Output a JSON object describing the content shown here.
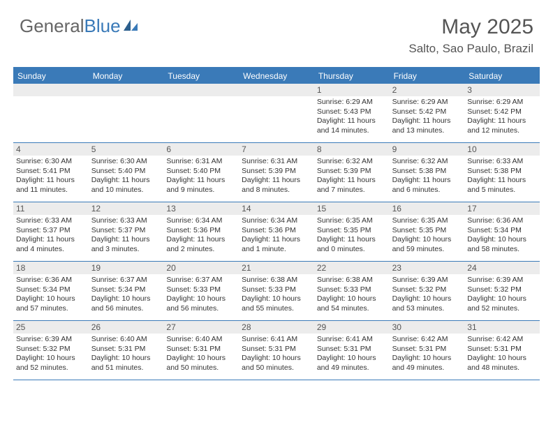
{
  "logo": {
    "part1": "General",
    "part2": "Blue"
  },
  "month_title": "May 2025",
  "location": "Salto, Sao Paulo, Brazil",
  "colors": {
    "header_bg": "#3a7ab8",
    "daynum_bg": "#ececec",
    "text": "#555555",
    "body_text": "#333333"
  },
  "day_headers": [
    "Sunday",
    "Monday",
    "Tuesday",
    "Wednesday",
    "Thursday",
    "Friday",
    "Saturday"
  ],
  "weeks": [
    [
      {
        "blank": true
      },
      {
        "blank": true
      },
      {
        "blank": true
      },
      {
        "blank": true
      },
      {
        "day": "1",
        "sunrise": "Sunrise: 6:29 AM",
        "sunset": "Sunset: 5:43 PM",
        "daylight1": "Daylight: 11 hours",
        "daylight2": "and 14 minutes."
      },
      {
        "day": "2",
        "sunrise": "Sunrise: 6:29 AM",
        "sunset": "Sunset: 5:42 PM",
        "daylight1": "Daylight: 11 hours",
        "daylight2": "and 13 minutes."
      },
      {
        "day": "3",
        "sunrise": "Sunrise: 6:29 AM",
        "sunset": "Sunset: 5:42 PM",
        "daylight1": "Daylight: 11 hours",
        "daylight2": "and 12 minutes."
      }
    ],
    [
      {
        "day": "4",
        "sunrise": "Sunrise: 6:30 AM",
        "sunset": "Sunset: 5:41 PM",
        "daylight1": "Daylight: 11 hours",
        "daylight2": "and 11 minutes."
      },
      {
        "day": "5",
        "sunrise": "Sunrise: 6:30 AM",
        "sunset": "Sunset: 5:40 PM",
        "daylight1": "Daylight: 11 hours",
        "daylight2": "and 10 minutes."
      },
      {
        "day": "6",
        "sunrise": "Sunrise: 6:31 AM",
        "sunset": "Sunset: 5:40 PM",
        "daylight1": "Daylight: 11 hours",
        "daylight2": "and 9 minutes."
      },
      {
        "day": "7",
        "sunrise": "Sunrise: 6:31 AM",
        "sunset": "Sunset: 5:39 PM",
        "daylight1": "Daylight: 11 hours",
        "daylight2": "and 8 minutes."
      },
      {
        "day": "8",
        "sunrise": "Sunrise: 6:32 AM",
        "sunset": "Sunset: 5:39 PM",
        "daylight1": "Daylight: 11 hours",
        "daylight2": "and 7 minutes."
      },
      {
        "day": "9",
        "sunrise": "Sunrise: 6:32 AM",
        "sunset": "Sunset: 5:38 PM",
        "daylight1": "Daylight: 11 hours",
        "daylight2": "and 6 minutes."
      },
      {
        "day": "10",
        "sunrise": "Sunrise: 6:33 AM",
        "sunset": "Sunset: 5:38 PM",
        "daylight1": "Daylight: 11 hours",
        "daylight2": "and 5 minutes."
      }
    ],
    [
      {
        "day": "11",
        "sunrise": "Sunrise: 6:33 AM",
        "sunset": "Sunset: 5:37 PM",
        "daylight1": "Daylight: 11 hours",
        "daylight2": "and 4 minutes."
      },
      {
        "day": "12",
        "sunrise": "Sunrise: 6:33 AM",
        "sunset": "Sunset: 5:37 PM",
        "daylight1": "Daylight: 11 hours",
        "daylight2": "and 3 minutes."
      },
      {
        "day": "13",
        "sunrise": "Sunrise: 6:34 AM",
        "sunset": "Sunset: 5:36 PM",
        "daylight1": "Daylight: 11 hours",
        "daylight2": "and 2 minutes."
      },
      {
        "day": "14",
        "sunrise": "Sunrise: 6:34 AM",
        "sunset": "Sunset: 5:36 PM",
        "daylight1": "Daylight: 11 hours",
        "daylight2": "and 1 minute."
      },
      {
        "day": "15",
        "sunrise": "Sunrise: 6:35 AM",
        "sunset": "Sunset: 5:35 PM",
        "daylight1": "Daylight: 11 hours",
        "daylight2": "and 0 minutes."
      },
      {
        "day": "16",
        "sunrise": "Sunrise: 6:35 AM",
        "sunset": "Sunset: 5:35 PM",
        "daylight1": "Daylight: 10 hours",
        "daylight2": "and 59 minutes."
      },
      {
        "day": "17",
        "sunrise": "Sunrise: 6:36 AM",
        "sunset": "Sunset: 5:34 PM",
        "daylight1": "Daylight: 10 hours",
        "daylight2": "and 58 minutes."
      }
    ],
    [
      {
        "day": "18",
        "sunrise": "Sunrise: 6:36 AM",
        "sunset": "Sunset: 5:34 PM",
        "daylight1": "Daylight: 10 hours",
        "daylight2": "and 57 minutes."
      },
      {
        "day": "19",
        "sunrise": "Sunrise: 6:37 AM",
        "sunset": "Sunset: 5:34 PM",
        "daylight1": "Daylight: 10 hours",
        "daylight2": "and 56 minutes."
      },
      {
        "day": "20",
        "sunrise": "Sunrise: 6:37 AM",
        "sunset": "Sunset: 5:33 PM",
        "daylight1": "Daylight: 10 hours",
        "daylight2": "and 56 minutes."
      },
      {
        "day": "21",
        "sunrise": "Sunrise: 6:38 AM",
        "sunset": "Sunset: 5:33 PM",
        "daylight1": "Daylight: 10 hours",
        "daylight2": "and 55 minutes."
      },
      {
        "day": "22",
        "sunrise": "Sunrise: 6:38 AM",
        "sunset": "Sunset: 5:33 PM",
        "daylight1": "Daylight: 10 hours",
        "daylight2": "and 54 minutes."
      },
      {
        "day": "23",
        "sunrise": "Sunrise: 6:39 AM",
        "sunset": "Sunset: 5:32 PM",
        "daylight1": "Daylight: 10 hours",
        "daylight2": "and 53 minutes."
      },
      {
        "day": "24",
        "sunrise": "Sunrise: 6:39 AM",
        "sunset": "Sunset: 5:32 PM",
        "daylight1": "Daylight: 10 hours",
        "daylight2": "and 52 minutes."
      }
    ],
    [
      {
        "day": "25",
        "sunrise": "Sunrise: 6:39 AM",
        "sunset": "Sunset: 5:32 PM",
        "daylight1": "Daylight: 10 hours",
        "daylight2": "and 52 minutes."
      },
      {
        "day": "26",
        "sunrise": "Sunrise: 6:40 AM",
        "sunset": "Sunset: 5:31 PM",
        "daylight1": "Daylight: 10 hours",
        "daylight2": "and 51 minutes."
      },
      {
        "day": "27",
        "sunrise": "Sunrise: 6:40 AM",
        "sunset": "Sunset: 5:31 PM",
        "daylight1": "Daylight: 10 hours",
        "daylight2": "and 50 minutes."
      },
      {
        "day": "28",
        "sunrise": "Sunrise: 6:41 AM",
        "sunset": "Sunset: 5:31 PM",
        "daylight1": "Daylight: 10 hours",
        "daylight2": "and 50 minutes."
      },
      {
        "day": "29",
        "sunrise": "Sunrise: 6:41 AM",
        "sunset": "Sunset: 5:31 PM",
        "daylight1": "Daylight: 10 hours",
        "daylight2": "and 49 minutes."
      },
      {
        "day": "30",
        "sunrise": "Sunrise: 6:42 AM",
        "sunset": "Sunset: 5:31 PM",
        "daylight1": "Daylight: 10 hours",
        "daylight2": "and 49 minutes."
      },
      {
        "day": "31",
        "sunrise": "Sunrise: 6:42 AM",
        "sunset": "Sunset: 5:31 PM",
        "daylight1": "Daylight: 10 hours",
        "daylight2": "and 48 minutes."
      }
    ]
  ]
}
